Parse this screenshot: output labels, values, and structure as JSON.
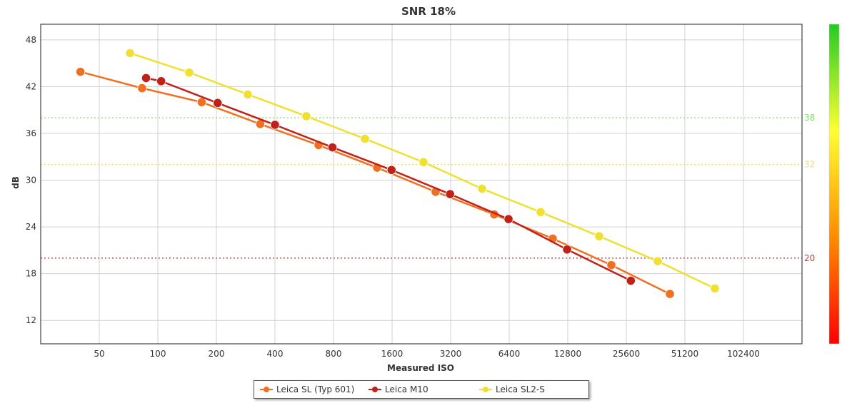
{
  "chart_data": {
    "type": "line",
    "title": "SNR 18%",
    "xlabel": "Measured ISO",
    "ylabel": "dB",
    "x_scale": "log2",
    "x_ticks": [
      50,
      100,
      200,
      400,
      800,
      1600,
      3200,
      6400,
      12800,
      25600,
      51200,
      102400
    ],
    "x_tick_labels": [
      "50",
      "100",
      "200",
      "400",
      "800",
      "1600",
      "3200",
      "6400",
      "12800",
      "25600",
      "51200",
      "102400"
    ],
    "xlim": [
      25,
      204800
    ],
    "y_ticks": [
      12,
      18,
      24,
      30,
      36,
      42,
      48
    ],
    "y_tick_labels": [
      "12",
      "18",
      "24",
      "30",
      "36",
      "42",
      "48"
    ],
    "ylim": [
      9,
      50
    ],
    "grid": true,
    "legend_position": "bottom-center",
    "reference_lines": [
      {
        "value": 38,
        "label": "38",
        "color": "#7de35a"
      },
      {
        "value": 32,
        "label": "32",
        "color": "#f5d67a"
      },
      {
        "value": 20,
        "label": "20",
        "color": "#e03030"
      }
    ],
    "color_scale": {
      "min": 0,
      "max": 50,
      "colors": [
        "#ff0000",
        "#ff8c00",
        "#ffff33",
        "#22cc22"
      ]
    },
    "series": [
      {
        "name": "Leica SL (Typ 601)",
        "color": "#f07020",
        "points": [
          [
            40,
            43.9
          ],
          [
            83,
            41.8
          ],
          [
            168,
            40.0
          ],
          [
            336,
            37.2
          ],
          [
            670,
            34.5
          ],
          [
            1340,
            31.6
          ],
          [
            2680,
            28.5
          ],
          [
            5360,
            25.6
          ],
          [
            10720,
            22.5
          ],
          [
            21440,
            19.1
          ],
          [
            42880,
            15.4
          ]
        ]
      },
      {
        "name": "Leica M10",
        "color": "#c0221a",
        "points": [
          [
            87,
            43.1
          ],
          [
            104,
            42.7
          ],
          [
            203,
            39.9
          ],
          [
            400,
            37.1
          ],
          [
            790,
            34.2
          ],
          [
            1590,
            31.3
          ],
          [
            3180,
            28.2
          ],
          [
            6350,
            25.0
          ],
          [
            12700,
            21.1
          ],
          [
            27000,
            17.1
          ]
        ]
      },
      {
        "name": "Leica SL2-S",
        "color": "#f0e030",
        "points": [
          [
            72,
            46.3
          ],
          [
            145,
            43.8
          ],
          [
            290,
            41.0
          ],
          [
            580,
            38.2
          ],
          [
            1160,
            35.3
          ],
          [
            2320,
            32.3
          ],
          [
            4640,
            28.9
          ],
          [
            9280,
            25.9
          ],
          [
            18560,
            22.8
          ],
          [
            37120,
            19.6
          ],
          [
            73000,
            16.1
          ]
        ]
      }
    ]
  }
}
